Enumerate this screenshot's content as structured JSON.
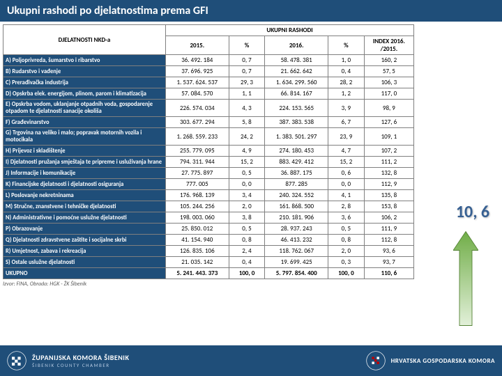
{
  "title": "Ukupni rashodi po djelatnostima prema GFI",
  "header": {
    "col0": "DJELATNOSTI NKD-a",
    "super": "UKUPNI RASHODI",
    "c1": "2015.",
    "c2": "%",
    "c3": "2016.",
    "c4": "%",
    "c5": "INDEX 2016. /2015."
  },
  "rows": [
    {
      "n": "A) Poljoprivreda, šumarstvo i ribarstvo",
      "a": "36. 492. 184",
      "b": "0, 7",
      "c": "58. 478. 381",
      "d": "1, 0",
      "e": "160, 2"
    },
    {
      "n": "B) Rudarstvo i vađenje",
      "a": "37. 696. 925",
      "b": "0, 7",
      "c": "21. 662. 642",
      "d": "0, 4",
      "e": "57, 5"
    },
    {
      "n": "C) Prerađivačka industrija",
      "a": "1. 537. 624. 537",
      "b": "29, 3",
      "c": "1. 634. 299. 560",
      "d": "28, 2",
      "e": "106, 3"
    },
    {
      "n": "D) Opskrba elek. energijom, plinom, parom i klimatizacija",
      "a": "57. 084. 570",
      "b": "1, 1",
      "c": "66. 814. 167",
      "d": "1, 2",
      "e": "117, 0"
    },
    {
      "n": "E) Opskrba vodom, uklanjanje otpadnih voda, gospodarenje otpadom te djelatnosti sanacije okoliša",
      "a": "226. 574. 034",
      "b": "4, 3",
      "c": "224. 153. 565",
      "d": "3, 9",
      "e": "98, 9"
    },
    {
      "n": "F) Građevinarstvo",
      "a": "303. 677. 294",
      "b": "5, 8",
      "c": "387. 383. 538",
      "d": "6, 7",
      "e": "127, 6"
    },
    {
      "n": "G) Trgovina na veliko i malo; popravak motornih vozila i motocikala",
      "a": "1. 268. 559. 233",
      "b": "24, 2",
      "c": "1. 383. 501. 297",
      "d": "23, 9",
      "e": "109, 1"
    },
    {
      "n": "H) Prijevoz i skladištenje",
      "a": "255. 779. 095",
      "b": "4, 9",
      "c": "274. 180. 453",
      "d": "4, 7",
      "e": "107, 2"
    },
    {
      "n": "I) Djelatnosti pružanja smještaja te pripreme i usluživanja hrane",
      "a": "794. 311. 944",
      "b": "15, 2",
      "c": "883. 429. 412",
      "d": "15, 2",
      "e": "111, 2"
    },
    {
      "n": "J) Informacije i komunikacije",
      "a": "27. 775. 897",
      "b": "0, 5",
      "c": "36. 887. 175",
      "d": "0, 6",
      "e": "132, 8"
    },
    {
      "n": "K) Financijske djelatnosti i djelatnosti osiguranja",
      "a": "777. 005",
      "b": "0, 0",
      "c": "877. 285",
      "d": "0, 0",
      "e": "112, 9"
    },
    {
      "n": "L) Poslovanje nekretninama",
      "a": "176. 968. 139",
      "b": "3, 4",
      "c": "240. 324. 552",
      "d": "4, 1",
      "e": "135, 8"
    },
    {
      "n": "M) Stručne, znanstvene i tehničke djelatnosti",
      "a": "105. 244. 256",
      "b": "2, 0",
      "c": "161. 868. 500",
      "d": "2, 8",
      "e": "153, 8"
    },
    {
      "n": "N) Administrativne i pomoćne uslužne djelatnosti",
      "a": "198. 003. 060",
      "b": "3, 8",
      "c": "210. 181. 906",
      "d": "3, 6",
      "e": "106, 2"
    },
    {
      "n": "P) Obrazovanje",
      "a": "25. 850. 012",
      "b": "0, 5",
      "c": "28. 937. 243",
      "d": "0, 5",
      "e": "111, 9"
    },
    {
      "n": "Q) Djelatnosti zdravstvene zaštite i socijalne skrbi",
      "a": "41. 154. 940",
      "b": "0, 8",
      "c": "46. 413. 232",
      "d": "0, 8",
      "e": "112, 8"
    },
    {
      "n": "R) Umjetnost, zabava i rekreacija",
      "a": "126. 835. 106",
      "b": "2, 4",
      "c": "118. 762. 067",
      "d": "2, 0",
      "e": "93, 6"
    },
    {
      "n": "S) Ostale uslužne djelatnosti",
      "a": "21. 035. 142",
      "b": "0, 4",
      "c": "19. 699. 425",
      "d": "0, 3",
      "e": "93, 7"
    }
  ],
  "total": {
    "n": "UKUPNO",
    "a": "5. 241. 443. 373",
    "b": "100, 0",
    "c": "5. 797. 854. 400",
    "d": "100, 0",
    "e": "110, 6"
  },
  "credit": "Izvor: FINA, Obrada: HGK - ŽK Šibenik",
  "bigNum": "10, 6",
  "footer": {
    "l1": "ŽUPANIJSKA KOMORA ŠIBENIK",
    "l2": "ŠIBENIK COUNTY CHAMBER",
    "l3": "HRVATSKA GOSPODARSKA KOMORA"
  },
  "colors": {
    "navy": "#1f4e79",
    "green1": "#c6e0b4",
    "green2": "#70ad47"
  }
}
